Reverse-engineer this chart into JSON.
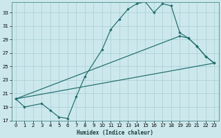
{
  "xlabel": "Humidex (Indice chaleur)",
  "ylabel": "",
  "bg_color": "#cce8ec",
  "grid_color": "#a8cdd4",
  "line_color": "#1e6b6b",
  "x": [
    0,
    1,
    2,
    3,
    4,
    5,
    6,
    7,
    8,
    9,
    10,
    11,
    12,
    13,
    14,
    15,
    16,
    17,
    18,
    19,
    20,
    21,
    22,
    23
  ],
  "line1": [
    20.2,
    19.0,
    null,
    19.5,
    18.5,
    17.5,
    17.3,
    20.5,
    23.5,
    null,
    27.5,
    30.5,
    32.0,
    33.5,
    34.3,
    34.6,
    33.0,
    34.3,
    34.0,
    30.0,
    29.2,
    28.0,
    26.5,
    25.5
  ],
  "line2_x": [
    0,
    19,
    20,
    21,
    22,
    23
  ],
  "line2_y": [
    20.2,
    29.5,
    29.2,
    28.0,
    26.5,
    25.5
  ],
  "line3_x": [
    0,
    23
  ],
  "line3_y": [
    20.2,
    25.5
  ],
  "ylim": [
    17,
    34.5
  ],
  "yticks": [
    17,
    19,
    21,
    23,
    25,
    27,
    29,
    31,
    33
  ],
  "xlim": [
    -0.5,
    23.5
  ]
}
